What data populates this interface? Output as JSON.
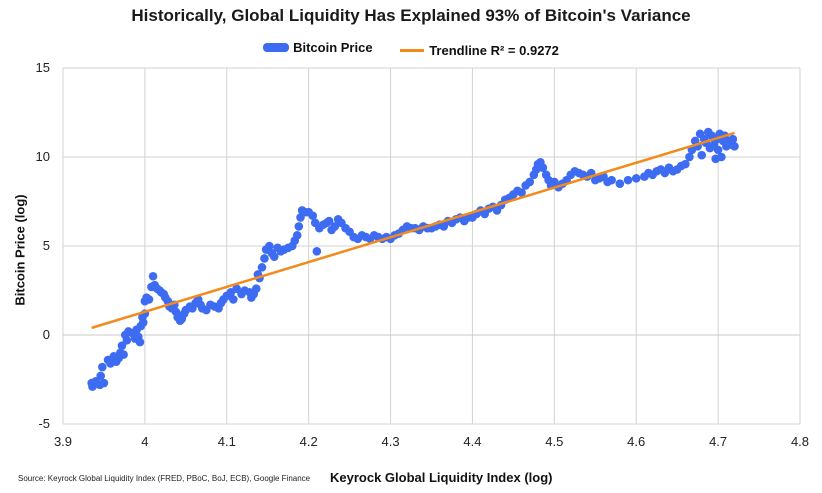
{
  "title": "Historically, Global Liquidity Has Explained 93% of Bitcoin's Variance",
  "legend": {
    "scatter_label": "Bitcoin Price",
    "line_label": "Trendline R² = 0.9272"
  },
  "source": "Source: Keyrock Global Liquidity Index (FRED, PBoC, BoJ, ECB), Google Finance",
  "colors": {
    "scatter": "#3d6cf2",
    "trend": "#f28a1c",
    "grid": "#d3d3d3"
  },
  "chart_data": {
    "type": "scatter",
    "title": "Historically, Global Liquidity Has Explained 93% of Bitcoin's Variance",
    "xlabel": "Keyrock Global Liquidity Index (log)",
    "ylabel": "Bitcoin Price (log)",
    "xlim": [
      3.9,
      4.8
    ],
    "ylim": [
      -5,
      15
    ],
    "xticks": [
      "3.9",
      "4",
      "4.1",
      "4.2",
      "4.3",
      "4.4",
      "4.5",
      "4.6",
      "4.7",
      "4.8"
    ],
    "yticks": [
      "-5",
      "0",
      "5",
      "10",
      "15"
    ],
    "grid": true,
    "legend_position": "top",
    "series": [
      {
        "name": "Bitcoin Price",
        "points": [
          [
            3.935,
            -2.7
          ],
          [
            3.936,
            -2.9
          ],
          [
            3.94,
            -2.6
          ],
          [
            3.945,
            -2.8
          ],
          [
            3.946,
            -2.3
          ],
          [
            3.948,
            -1.8
          ],
          [
            3.95,
            -2.7
          ],
          [
            3.955,
            -1.4
          ],
          [
            3.958,
            -1.6
          ],
          [
            3.962,
            -1.2
          ],
          [
            3.965,
            -1.5
          ],
          [
            3.968,
            -1.3
          ],
          [
            3.97,
            -1.0
          ],
          [
            3.972,
            -0.6
          ],
          [
            3.974,
            -1.1
          ],
          [
            3.976,
            0.0
          ],
          [
            3.978,
            -0.3
          ],
          [
            3.98,
            0.2
          ],
          [
            3.985,
            0.1
          ],
          [
            3.988,
            -0.2
          ],
          [
            3.99,
            0.3
          ],
          [
            3.992,
            -0.1
          ],
          [
            3.994,
            -0.4
          ],
          [
            3.995,
            0.5
          ],
          [
            3.997,
            1.0
          ],
          [
            3.998,
            0.7
          ],
          [
            4.0,
            1.2
          ],
          [
            4.0,
            1.9
          ],
          [
            4.002,
            2.1
          ],
          [
            4.005,
            2.0
          ],
          [
            4.008,
            2.7
          ],
          [
            4.01,
            3.3
          ],
          [
            4.012,
            2.8
          ],
          [
            4.015,
            2.6
          ],
          [
            4.018,
            2.5
          ],
          [
            4.02,
            2.4
          ],
          [
            4.023,
            2.3
          ],
          [
            4.025,
            2.1
          ],
          [
            4.028,
            1.9
          ],
          [
            4.03,
            1.6
          ],
          [
            4.033,
            1.5
          ],
          [
            4.036,
            1.7
          ],
          [
            4.038,
            1.3
          ],
          [
            4.04,
            1.0
          ],
          [
            4.043,
            0.8
          ],
          [
            4.045,
            0.9
          ],
          [
            4.048,
            1.2
          ],
          [
            4.05,
            1.4
          ],
          [
            4.055,
            1.6
          ],
          [
            4.058,
            1.5
          ],
          [
            4.062,
            1.8
          ],
          [
            4.065,
            2.0
          ],
          [
            4.068,
            1.7
          ],
          [
            4.07,
            1.5
          ],
          [
            4.075,
            1.4
          ],
          [
            4.08,
            1.7
          ],
          [
            4.085,
            1.6
          ],
          [
            4.09,
            1.5
          ],
          [
            4.093,
            1.8
          ],
          [
            4.096,
            2.0
          ],
          [
            4.1,
            2.2
          ],
          [
            4.105,
            2.4
          ],
          [
            4.108,
            2.0
          ],
          [
            4.112,
            2.6
          ],
          [
            4.118,
            2.3
          ],
          [
            4.122,
            2.5
          ],
          [
            4.128,
            2.4
          ],
          [
            4.13,
            2.1
          ],
          [
            4.133,
            2.3
          ],
          [
            4.136,
            2.6
          ],
          [
            4.138,
            3.4
          ],
          [
            4.14,
            3.2
          ],
          [
            4.143,
            3.8
          ],
          [
            4.146,
            4.3
          ],
          [
            4.148,
            4.8
          ],
          [
            4.152,
            5.0
          ],
          [
            4.155,
            4.6
          ],
          [
            4.158,
            4.4
          ],
          [
            4.162,
            4.9
          ],
          [
            4.166,
            4.7
          ],
          [
            4.17,
            4.8
          ],
          [
            4.175,
            4.9
          ],
          [
            4.18,
            5.0
          ],
          [
            4.183,
            5.3
          ],
          [
            4.186,
            5.6
          ],
          [
            4.188,
            6.1
          ],
          [
            4.19,
            6.6
          ],
          [
            4.192,
            7.0
          ],
          [
            4.196,
            6.9
          ],
          [
            4.2,
            6.9
          ],
          [
            4.205,
            6.7
          ],
          [
            4.208,
            6.3
          ],
          [
            4.21,
            4.7
          ],
          [
            4.213,
            6.0
          ],
          [
            4.218,
            6.2
          ],
          [
            4.222,
            6.3
          ],
          [
            4.225,
            6.4
          ],
          [
            4.228,
            5.9
          ],
          [
            4.232,
            6.1
          ],
          [
            4.236,
            6.5
          ],
          [
            4.24,
            6.3
          ],
          [
            4.245,
            6.0
          ],
          [
            4.25,
            5.8
          ],
          [
            4.255,
            5.5
          ],
          [
            4.26,
            5.4
          ],
          [
            4.265,
            5.6
          ],
          [
            4.27,
            5.5
          ],
          [
            4.275,
            5.4
          ],
          [
            4.28,
            5.6
          ],
          [
            4.285,
            5.5
          ],
          [
            4.29,
            5.4
          ],
          [
            4.295,
            5.5
          ],
          [
            4.3,
            5.4
          ],
          [
            4.305,
            5.6
          ],
          [
            4.31,
            5.7
          ],
          [
            4.315,
            5.9
          ],
          [
            4.32,
            6.1
          ],
          [
            4.325,
            6.0
          ],
          [
            4.33,
            6.0
          ],
          [
            4.335,
            5.9
          ],
          [
            4.34,
            6.1
          ],
          [
            4.345,
            6.0
          ],
          [
            4.35,
            6.0
          ],
          [
            4.355,
            6.1
          ],
          [
            4.36,
            6.2
          ],
          [
            4.365,
            6.1
          ],
          [
            4.37,
            6.4
          ],
          [
            4.375,
            6.3
          ],
          [
            4.38,
            6.5
          ],
          [
            4.385,
            6.6
          ],
          [
            4.39,
            6.4
          ],
          [
            4.395,
            6.6
          ],
          [
            4.4,
            6.6
          ],
          [
            4.405,
            6.8
          ],
          [
            4.41,
            7.0
          ],
          [
            4.415,
            6.8
          ],
          [
            4.42,
            7.1
          ],
          [
            4.425,
            7.2
          ],
          [
            4.43,
            7.0
          ],
          [
            4.435,
            7.3
          ],
          [
            4.44,
            7.6
          ],
          [
            4.445,
            7.7
          ],
          [
            4.45,
            7.9
          ],
          [
            4.455,
            8.1
          ],
          [
            4.46,
            8.0
          ],
          [
            4.465,
            8.4
          ],
          [
            4.47,
            8.6
          ],
          [
            4.475,
            9.0
          ],
          [
            4.478,
            9.3
          ],
          [
            4.48,
            9.6
          ],
          [
            4.483,
            9.7
          ],
          [
            4.486,
            9.4
          ],
          [
            4.49,
            9.0
          ],
          [
            4.493,
            8.7
          ],
          [
            4.496,
            8.4
          ],
          [
            4.5,
            8.6
          ],
          [
            4.505,
            8.3
          ],
          [
            4.51,
            8.5
          ],
          [
            4.515,
            8.7
          ],
          [
            4.52,
            9.0
          ],
          [
            4.525,
            9.2
          ],
          [
            4.53,
            9.1
          ],
          [
            4.535,
            9.0
          ],
          [
            4.54,
            8.9
          ],
          [
            4.545,
            9.1
          ],
          [
            4.55,
            8.7
          ],
          [
            4.555,
            8.8
          ],
          [
            4.56,
            8.9
          ],
          [
            4.565,
            8.6
          ],
          [
            4.57,
            8.7
          ],
          [
            4.58,
            8.5
          ],
          [
            4.59,
            8.7
          ],
          [
            4.6,
            8.8
          ],
          [
            4.61,
            8.9
          ],
          [
            4.615,
            9.1
          ],
          [
            4.62,
            9.0
          ],
          [
            4.625,
            9.2
          ],
          [
            4.63,
            9.3
          ],
          [
            4.635,
            9.1
          ],
          [
            4.64,
            9.4
          ],
          [
            4.645,
            9.2
          ],
          [
            4.65,
            9.3
          ],
          [
            4.655,
            9.5
          ],
          [
            4.66,
            9.6
          ],
          [
            4.665,
            10.0
          ],
          [
            4.668,
            10.4
          ],
          [
            4.672,
            10.9
          ],
          [
            4.675,
            10.6
          ],
          [
            4.678,
            11.3
          ],
          [
            4.68,
            10.1
          ],
          [
            4.683,
            11.0
          ],
          [
            4.685,
            10.8
          ],
          [
            4.688,
            11.4
          ],
          [
            4.69,
            10.5
          ],
          [
            4.692,
            11.2
          ],
          [
            4.695,
            10.7
          ],
          [
            4.697,
            9.9
          ],
          [
            4.698,
            11.0
          ],
          [
            4.7,
            10.4
          ],
          [
            4.702,
            11.3
          ],
          [
            4.704,
            10.0
          ],
          [
            4.706,
            10.9
          ],
          [
            4.708,
            11.2
          ],
          [
            4.71,
            10.6
          ],
          [
            4.712,
            10.9
          ],
          [
            4.715,
            10.7
          ],
          [
            4.718,
            11.0
          ],
          [
            4.72,
            10.6
          ]
        ]
      },
      {
        "name": "Trendline R² = 0.9272",
        "type": "line",
        "x": [
          3.935,
          4.72
        ],
        "y": [
          0.4,
          11.35
        ]
      }
    ]
  }
}
